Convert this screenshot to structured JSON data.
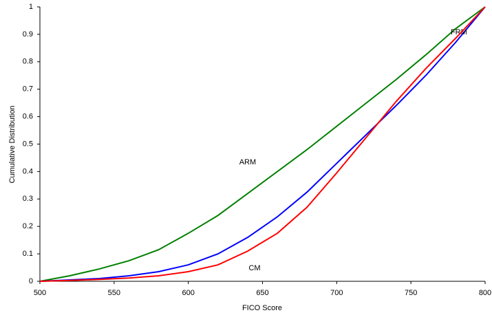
{
  "chart_data": {
    "type": "line",
    "x_label": "FICO Score",
    "y_label": "Cumulative Distribution",
    "x": [
      500,
      520,
      540,
      560,
      580,
      600,
      620,
      640,
      660,
      680,
      700,
      720,
      740,
      760,
      780,
      800
    ],
    "series": [
      {
        "name": "ARM",
        "color": "#008000",
        "values": [
          0,
          0.02,
          0.045,
          0.075,
          0.115,
          0.175,
          0.24,
          0.32,
          0.4,
          0.48,
          0.565,
          0.65,
          0.735,
          0.825,
          0.92,
          1
        ]
      },
      {
        "name": "FRM",
        "color": "#0000ff",
        "values": [
          0,
          0.005,
          0.01,
          0.02,
          0.035,
          0.06,
          0.1,
          0.16,
          0.235,
          0.325,
          0.43,
          0.535,
          0.64,
          0.75,
          0.87,
          1
        ]
      },
      {
        "name": "CM",
        "color": "#ff0000",
        "values": [
          0,
          0.003,
          0.007,
          0.012,
          0.02,
          0.035,
          0.06,
          0.11,
          0.175,
          0.27,
          0.395,
          0.525,
          0.655,
          0.775,
          0.885,
          1
        ]
      }
    ],
    "xlim": [
      500,
      800
    ],
    "xticks": [
      500,
      550,
      600,
      650,
      700,
      750,
      800
    ],
    "ylim": [
      0,
      1
    ],
    "yticks": [
      0,
      0.1,
      0.2,
      0.3,
      0.4,
      0.5,
      0.6,
      0.7,
      0.8,
      0.9,
      1
    ],
    "grid": false
  }
}
